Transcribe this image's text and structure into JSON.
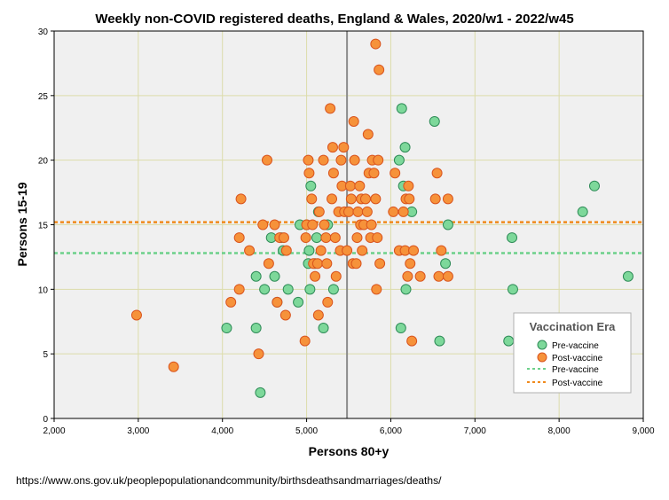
{
  "chart_data": {
    "type": "scatter",
    "title": "Weekly non-COVID registered deaths, England & Wales, 2020/w1 - 2022/w45",
    "xlabel": "Persons 80+y",
    "ylabel": "Persons 15-19",
    "xlim": [
      2000,
      9000
    ],
    "ylim": [
      0,
      30
    ],
    "x_ticks": [
      2000,
      3000,
      4000,
      5000,
      6000,
      7000,
      8000,
      9000
    ],
    "x_tick_labels": [
      "2,000",
      "3,000",
      "4,000",
      "5,000",
      "6,000",
      "7,000",
      "8,000",
      "9,000"
    ],
    "y_ticks": [
      0,
      5,
      10,
      15,
      20,
      25,
      30
    ],
    "y_tick_labels": [
      "0",
      "5",
      "10",
      "15",
      "20",
      "25",
      "30"
    ],
    "grid": true,
    "vertical_reference_line": 5480,
    "legend": {
      "title": "Vaccination Era",
      "position": "bottom-right",
      "entries": [
        "Pre-vaccine",
        "Post-vaccine",
        "Pre-vaccine",
        "Post-vaccine"
      ]
    },
    "colors": {
      "pre_fill": "#7dd89a",
      "pre_edge": "#2e8b57",
      "post_fill": "#f6923a",
      "post_edge": "#d9541e",
      "pre_line": "#6cd08a",
      "post_line": "#f08a1c",
      "plot_bg": "#f0f0f0",
      "grid": "#dcdcaa",
      "ref_line": "#8c8c8c"
    },
    "series": [
      {
        "name": "Pre-vaccine",
        "marker": "circle",
        "points": [
          [
            4050,
            7
          ],
          [
            4400,
            7
          ],
          [
            4450,
            2
          ],
          [
            4400,
            11
          ],
          [
            4500,
            10
          ],
          [
            4580,
            14
          ],
          [
            4620,
            11
          ],
          [
            4650,
            9
          ],
          [
            4700,
            14
          ],
          [
            4720,
            13
          ],
          [
            4780,
            10
          ],
          [
            4900,
            9
          ],
          [
            4920,
            15
          ],
          [
            5000,
            15
          ],
          [
            5020,
            12
          ],
          [
            5030,
            13
          ],
          [
            5040,
            10
          ],
          [
            5050,
            18
          ],
          [
            5100,
            12
          ],
          [
            5120,
            14
          ],
          [
            5140,
            16
          ],
          [
            5200,
            7
          ],
          [
            5250,
            15
          ],
          [
            5320,
            10
          ],
          [
            6100,
            20
          ],
          [
            6120,
            7
          ],
          [
            6130,
            24
          ],
          [
            6150,
            18
          ],
          [
            6170,
            21
          ],
          [
            6180,
            10
          ],
          [
            6250,
            16
          ],
          [
            6520,
            23
          ],
          [
            6580,
            6
          ],
          [
            6650,
            12
          ],
          [
            6680,
            15
          ],
          [
            7400,
            6
          ],
          [
            7440,
            14
          ],
          [
            7450,
            10
          ],
          [
            8280,
            16
          ],
          [
            8420,
            18
          ],
          [
            8820,
            11
          ]
        ],
        "fit_line_y": 12.8
      },
      {
        "name": "Post-vaccine",
        "marker": "circle",
        "points": [
          [
            2980,
            8
          ],
          [
            3420,
            4
          ],
          [
            4100,
            9
          ],
          [
            4200,
            14
          ],
          [
            4200,
            10
          ],
          [
            4220,
            17
          ],
          [
            4320,
            13
          ],
          [
            4430,
            5
          ],
          [
            4480,
            15
          ],
          [
            4530,
            20
          ],
          [
            4550,
            12
          ],
          [
            4620,
            15
          ],
          [
            4650,
            9
          ],
          [
            4680,
            14
          ],
          [
            4730,
            14
          ],
          [
            4750,
            8
          ],
          [
            4760,
            13
          ],
          [
            4980,
            6
          ],
          [
            4990,
            14
          ],
          [
            5000,
            15
          ],
          [
            5020,
            20
          ],
          [
            5030,
            19
          ],
          [
            5060,
            17
          ],
          [
            5070,
            15
          ],
          [
            5080,
            12
          ],
          [
            5100,
            11
          ],
          [
            5130,
            12
          ],
          [
            5140,
            8
          ],
          [
            5150,
            16
          ],
          [
            5170,
            13
          ],
          [
            5200,
            20
          ],
          [
            5210,
            15
          ],
          [
            5230,
            14
          ],
          [
            5240,
            12
          ],
          [
            5250,
            9
          ],
          [
            5280,
            24
          ],
          [
            5300,
            17
          ],
          [
            5310,
            21
          ],
          [
            5320,
            19
          ],
          [
            5340,
            14
          ],
          [
            5350,
            11
          ],
          [
            5380,
            16
          ],
          [
            5400,
            13
          ],
          [
            5410,
            20
          ],
          [
            5420,
            18
          ],
          [
            5440,
            21
          ],
          [
            5450,
            16
          ],
          [
            5480,
            13
          ],
          [
            5500,
            16
          ],
          [
            5520,
            18
          ],
          [
            5530,
            17
          ],
          [
            5550,
            12
          ],
          [
            5560,
            23
          ],
          [
            5570,
            20
          ],
          [
            5590,
            12
          ],
          [
            5600,
            14
          ],
          [
            5610,
            16
          ],
          [
            5630,
            18
          ],
          [
            5640,
            15
          ],
          [
            5650,
            17
          ],
          [
            5660,
            13
          ],
          [
            5680,
            15
          ],
          [
            5700,
            17
          ],
          [
            5720,
            16
          ],
          [
            5730,
            22
          ],
          [
            5740,
            19
          ],
          [
            5760,
            14
          ],
          [
            5770,
            15
          ],
          [
            5780,
            20
          ],
          [
            5800,
            19
          ],
          [
            5820,
            17
          ],
          [
            5830,
            10
          ],
          [
            5840,
            14
          ],
          [
            5850,
            20
          ],
          [
            5870,
            12
          ],
          [
            5820,
            29
          ],
          [
            5860,
            27
          ],
          [
            6030,
            16
          ],
          [
            6050,
            19
          ],
          [
            6100,
            13
          ],
          [
            6150,
            16
          ],
          [
            6170,
            13
          ],
          [
            6180,
            17
          ],
          [
            6200,
            11
          ],
          [
            6210,
            18
          ],
          [
            6220,
            17
          ],
          [
            6230,
            12
          ],
          [
            6250,
            6
          ],
          [
            6270,
            13
          ],
          [
            6350,
            11
          ],
          [
            6530,
            17
          ],
          [
            6550,
            19
          ],
          [
            6570,
            11
          ],
          [
            6600,
            13
          ],
          [
            6680,
            17
          ],
          [
            6680,
            11
          ]
        ],
        "fit_line_y": 15.2
      }
    ]
  },
  "source_note": "https://www.ons.gov.uk/peoplepopulationandcommunity/birthsdeathsandmarriages/deaths/"
}
